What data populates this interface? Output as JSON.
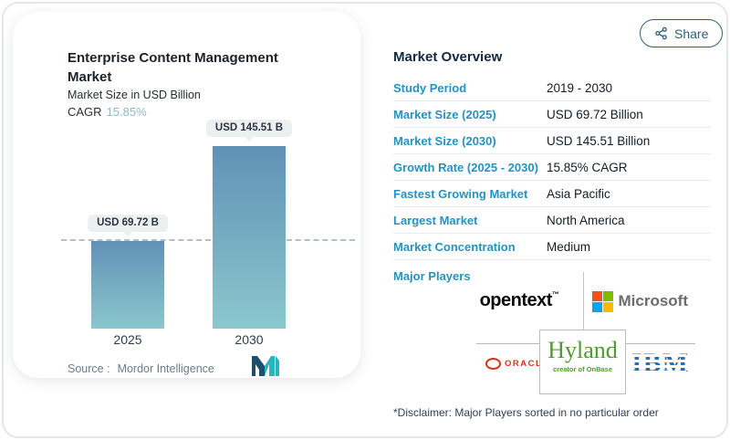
{
  "share": {
    "label": "Share",
    "icon": "share-nodes-icon",
    "color": "#2c607a"
  },
  "chart": {
    "title": "Enterprise Content Management Market",
    "subtitle": "Market Size in USD Billion",
    "cagr_label": "CAGR",
    "cagr_value": "15.85%",
    "source_label": "Source :",
    "source_value": "Mordor Intelligence",
    "brand_logo": "mordor-intelligence-logo"
  },
  "chart_data": {
    "type": "bar",
    "categories": [
      "2025",
      "2030"
    ],
    "values": [
      69.72,
      145.51
    ],
    "value_labels": [
      "USD 69.72 B",
      "USD 145.51 B"
    ],
    "title": "Enterprise Content Management Market",
    "ylabel": "Market Size in USD Billion",
    "ylim": [
      0,
      145.51
    ],
    "grid": false,
    "legend": "none",
    "annotations": [
      {
        "type": "dashed-reference-line",
        "y": 69.72
      }
    ],
    "colors": {
      "bar_top": "#6191b6",
      "bar_bottom": "#8bc7cd",
      "dashline": "#aac3c8"
    }
  },
  "overview": {
    "heading": "Market Overview",
    "rows": [
      {
        "label": "Study Period",
        "value": "2019 - 2030"
      },
      {
        "label": "Market Size (2025)",
        "value": "USD 69.72 Billion"
      },
      {
        "label": "Market Size (2030)",
        "value": "USD 145.51 Billion"
      },
      {
        "label": "Growth Rate (2025 - 2030)",
        "value": "15.85% CAGR"
      },
      {
        "label": "Fastest Growing Market",
        "value": "Asia Pacific"
      },
      {
        "label": "Largest Market",
        "value": "North America"
      },
      {
        "label": "Market Concentration",
        "value": "Medium"
      }
    ],
    "major_players_label": "Major Players",
    "players": {
      "opentext": {
        "name": "opentext",
        "tm": "™"
      },
      "microsoft": {
        "name": "Microsoft"
      },
      "oracle": {
        "name": "ORACLE"
      },
      "hyland": {
        "name": "Hyland",
        "tagline": "creator of OnBase"
      },
      "ibm": {
        "name": "IBM"
      }
    }
  },
  "disclaimer": "*Disclaimer: Major Players sorted in no particular order",
  "colors": {
    "accent_blue": "#2692c1",
    "dark_navy": "#16293f",
    "teal_light": "#8fbac6"
  }
}
